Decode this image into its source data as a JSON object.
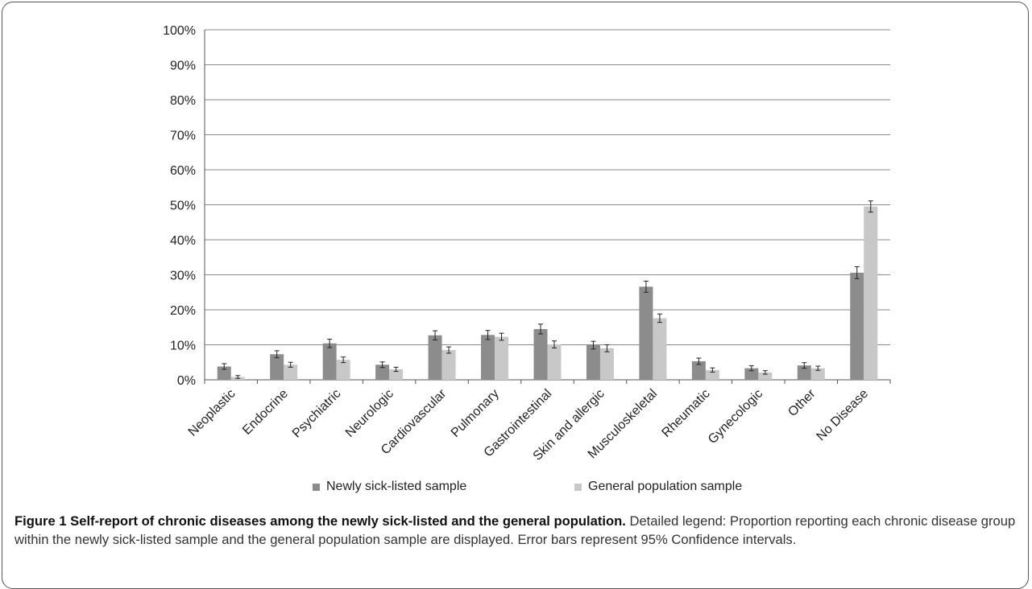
{
  "chart_data": {
    "type": "bar",
    "categories": [
      "Neoplastic",
      "Endocrine",
      "Psychiatric",
      "Neurologic",
      "Cardiovascular",
      "Pulmonary",
      "Gastrointestinal",
      "Skin and allergic",
      "Musculoskeletal",
      "Rheumatic",
      "Gynecologic",
      "Other",
      "No Disease"
    ],
    "series": [
      {
        "name": "Newly sick-listed sample",
        "color": "#8c8c8c",
        "values": [
          3.8,
          7.3,
          10.4,
          4.3,
          12.7,
          12.8,
          14.5,
          9.9,
          26.6,
          5.3,
          3.3,
          4.1,
          30.6
        ],
        "ci_halfwidth": [
          0.8,
          1.0,
          1.2,
          0.8,
          1.3,
          1.3,
          1.4,
          1.1,
          1.6,
          0.9,
          0.7,
          0.8,
          1.7
        ]
      },
      {
        "name": "General population sample",
        "color": "#c8c8c8",
        "values": [
          0.8,
          4.3,
          5.7,
          3.0,
          8.5,
          12.3,
          10.1,
          9.0,
          17.6,
          2.8,
          2.1,
          3.3,
          49.5
        ],
        "ci_halfwidth": [
          0.4,
          0.7,
          0.8,
          0.6,
          0.9,
          1.0,
          1.0,
          1.0,
          1.2,
          0.6,
          0.5,
          0.6,
          1.6
        ]
      }
    ],
    "ylim": [
      0,
      100
    ],
    "yticks": [
      "0%",
      "10%",
      "20%",
      "30%",
      "40%",
      "50%",
      "60%",
      "70%",
      "80%",
      "90%",
      "100%"
    ],
    "grid": true,
    "legend_position": "bottom"
  },
  "caption": {
    "bold": "Figure 1 Self-report of chronic diseases among the newly sick-listed and the general population.",
    "text": " Detailed legend: Proportion reporting each chronic disease group within the newly sick-listed sample and the general population sample are displayed. Error bars represent 95% Confidence intervals."
  }
}
